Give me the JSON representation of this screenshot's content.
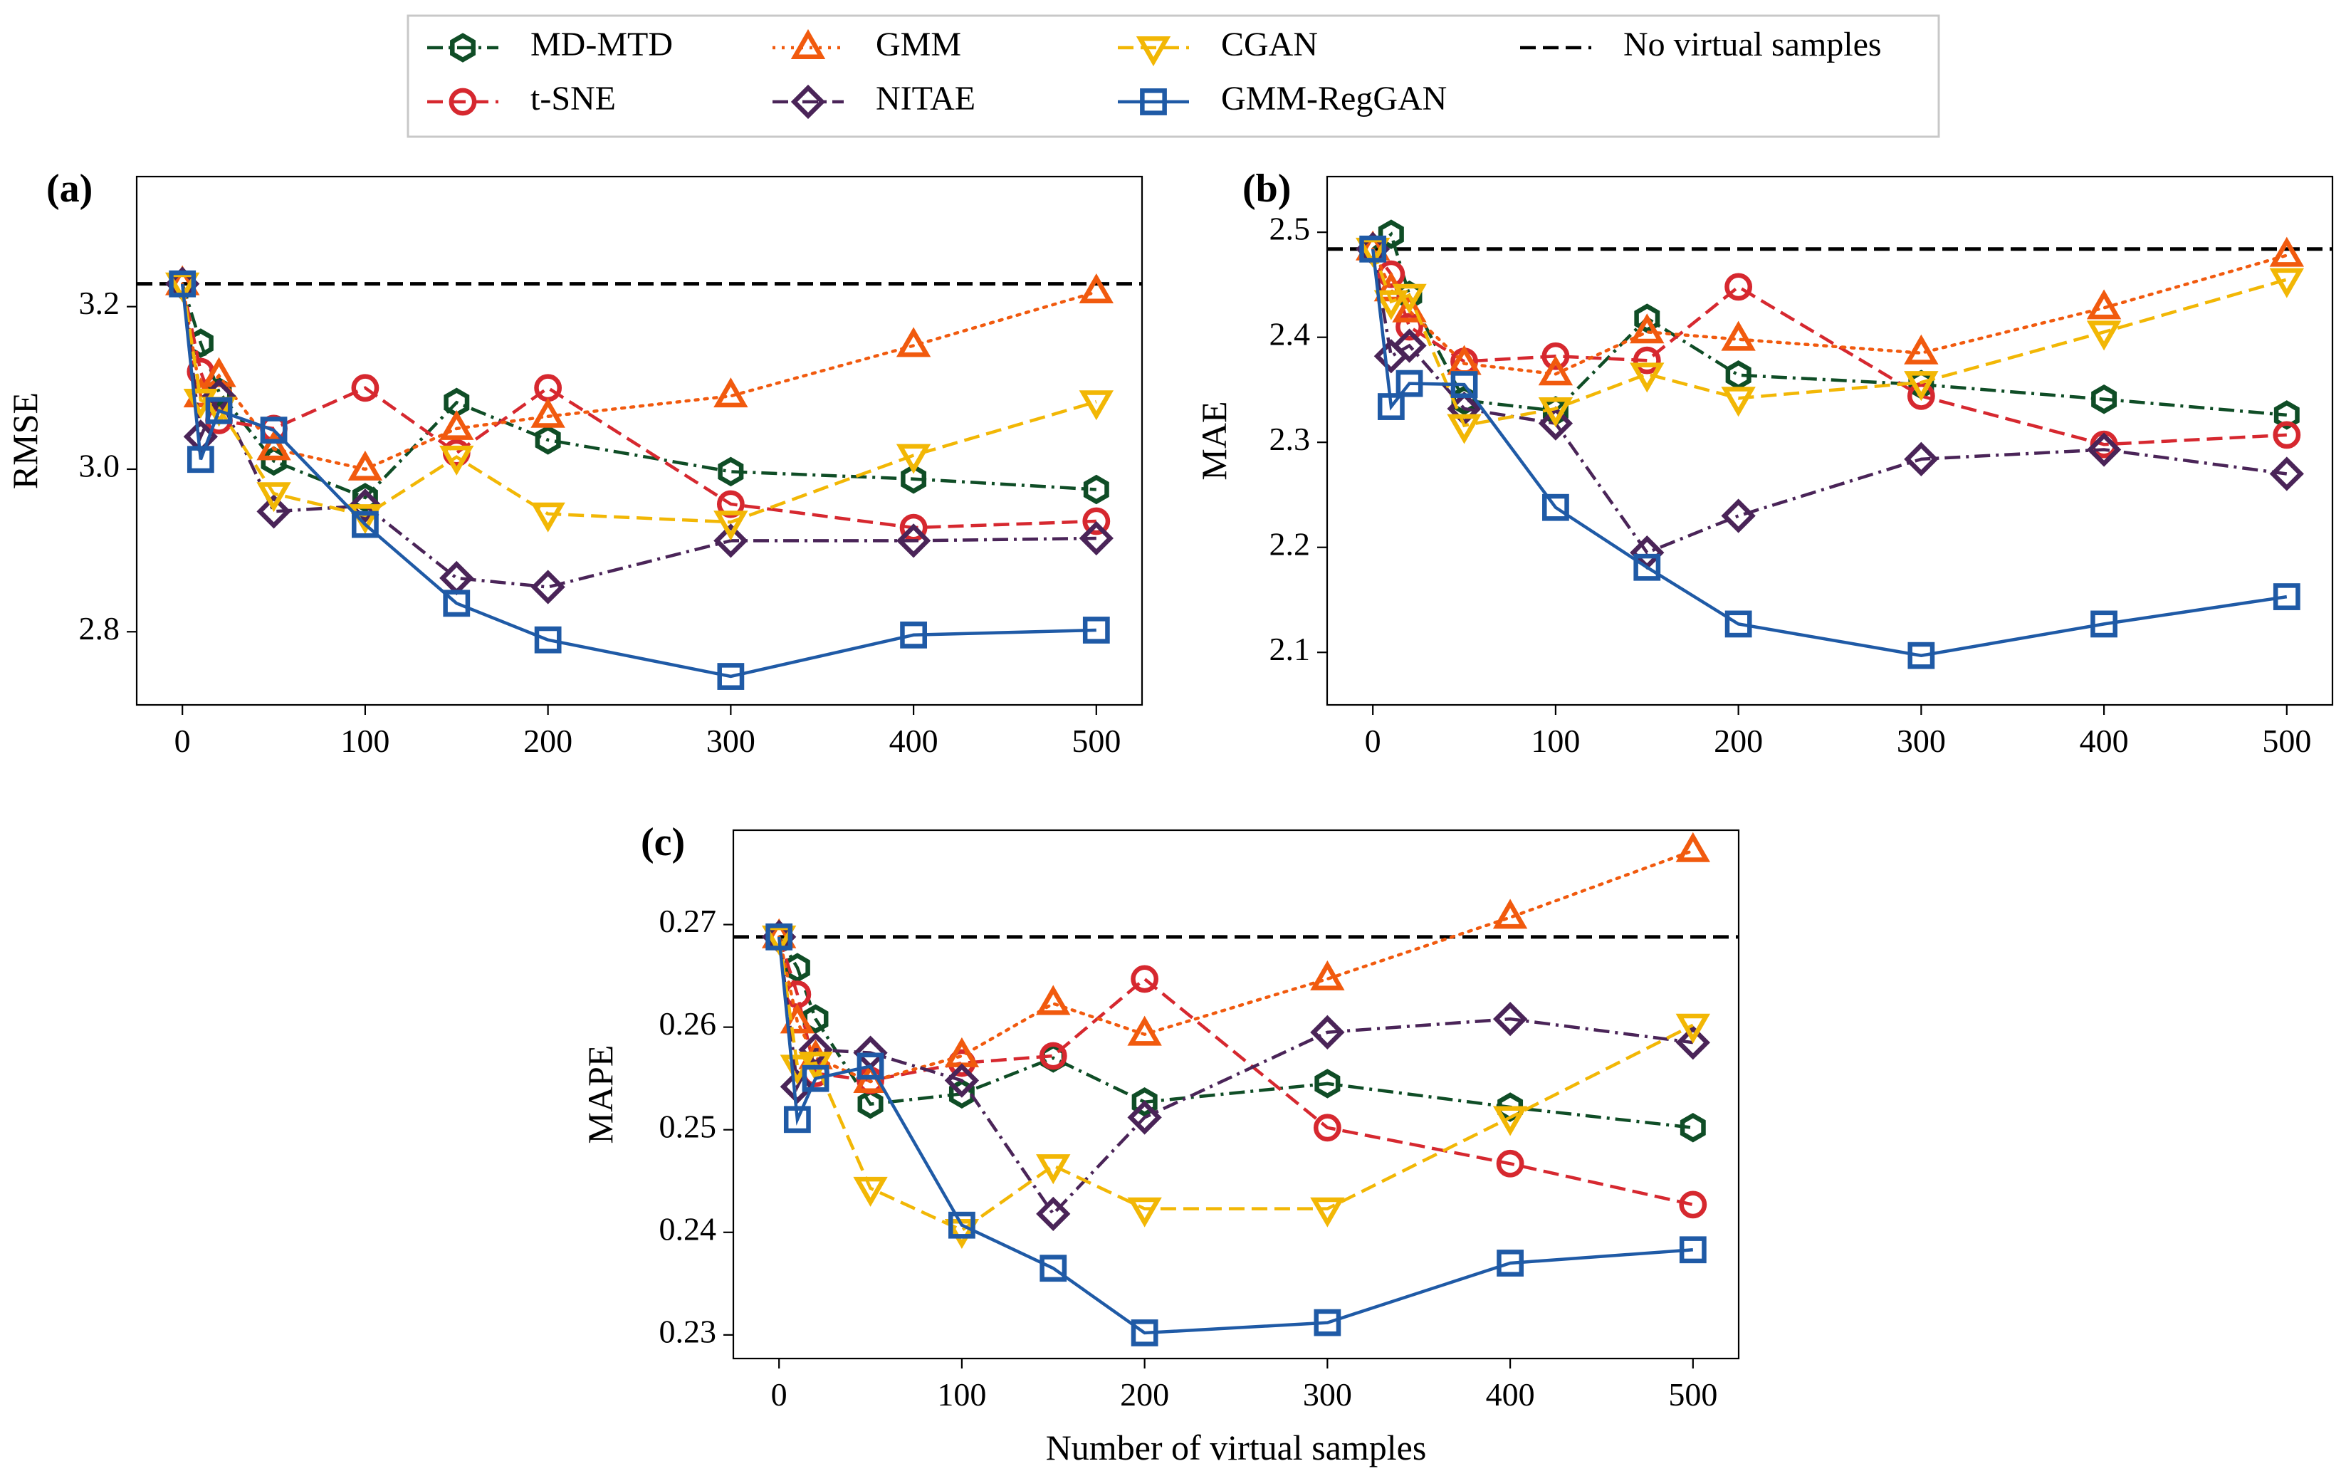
{
  "legend": {
    "entries": [
      {
        "name": "MD-MTD",
        "color": "#0f4d26",
        "dash": "dashdot",
        "marker": "hexagon"
      },
      {
        "name": "t-SNE",
        "color": "#d6282f",
        "dash": "dashed",
        "marker": "circle"
      },
      {
        "name": "GMM",
        "color": "#f15a0e",
        "dash": "dotted",
        "marker": "triangle-up"
      },
      {
        "name": "NITAE",
        "color": "#4a2458",
        "dash": "dashdot",
        "marker": "diamond"
      },
      {
        "name": "CGAN",
        "color": "#f2b705",
        "dash": "dashed",
        "marker": "triangle-down"
      },
      {
        "name": "GMM-RegGAN",
        "color": "#1f5aa6",
        "dash": "solid",
        "marker": "square"
      },
      {
        "name": "No virtual samples",
        "color": "#000000",
        "dash": "dashed",
        "marker": "none"
      }
    ]
  },
  "chart_data": [
    {
      "type": "line",
      "panel": "(a)",
      "xlabel": "",
      "ylabel": "RMSE",
      "x": [
        0,
        10,
        20,
        50,
        100,
        150,
        200,
        300,
        400,
        500
      ],
      "xlim": [
        -25,
        525
      ],
      "ylim": [
        2.71,
        3.36
      ],
      "xticks": [
        0,
        100,
        200,
        300,
        400,
        500
      ],
      "yticks": [
        2.8,
        3.0,
        3.2
      ],
      "ytick_labels": [
        "2.8",
        "3.0",
        "3.2"
      ],
      "baseline": 3.228,
      "series": [
        {
          "name": "MD-MTD",
          "values": [
            3.228,
            3.155,
            3.095,
            3.01,
            2.965,
            3.082,
            3.036,
            2.997,
            2.988,
            2.975
          ]
        },
        {
          "name": "t-SNE",
          "values": [
            3.228,
            3.12,
            3.06,
            3.05,
            3.1,
            3.02,
            3.1,
            2.957,
            2.928,
            2.936
          ]
        },
        {
          "name": "GMM",
          "values": [
            3.228,
            3.09,
            3.115,
            3.025,
            3.0,
            3.05,
            3.065,
            3.09,
            3.152,
            3.218
          ]
        },
        {
          "name": "NITAE",
          "values": [
            3.228,
            3.04,
            3.09,
            2.948,
            2.955,
            2.866,
            2.855,
            2.912,
            2.912,
            2.915
          ]
        },
        {
          "name": "CGAN",
          "values": [
            3.228,
            3.085,
            3.075,
            2.97,
            2.943,
            3.015,
            2.945,
            2.935,
            3.017,
            3.083
          ]
        },
        {
          "name": "GMM-RegGAN",
          "values": [
            3.228,
            3.012,
            3.072,
            3.048,
            2.932,
            2.835,
            2.79,
            2.745,
            2.796,
            2.802
          ]
        }
      ]
    },
    {
      "type": "line",
      "panel": "(b)",
      "xlabel": "",
      "ylabel": "MAE",
      "x": [
        0,
        10,
        20,
        50,
        100,
        150,
        200,
        300,
        400,
        500
      ],
      "xlim": [
        -25,
        525
      ],
      "ylim": [
        2.05,
        2.553
      ],
      "xticks": [
        0,
        100,
        200,
        300,
        400,
        500
      ],
      "yticks": [
        2.1,
        2.2,
        2.3,
        2.4,
        2.5
      ],
      "ytick_labels": [
        "2.1",
        "2.2",
        "2.3",
        "2.4",
        "2.5"
      ],
      "baseline": 2.484,
      "series": [
        {
          "name": "MD-MTD",
          "values": [
            2.484,
            2.498,
            2.44,
            2.34,
            2.33,
            2.418,
            2.364,
            2.355,
            2.341,
            2.326
          ]
        },
        {
          "name": "t-SNE",
          "values": [
            2.484,
            2.46,
            2.41,
            2.377,
            2.382,
            2.378,
            2.448,
            2.344,
            2.298,
            2.307
          ]
        },
        {
          "name": "GMM",
          "values": [
            2.484,
            2.445,
            2.425,
            2.375,
            2.365,
            2.405,
            2.398,
            2.385,
            2.428,
            2.478
          ]
        },
        {
          "name": "NITAE",
          "values": [
            2.484,
            2.382,
            2.392,
            2.332,
            2.318,
            2.195,
            2.23,
            2.284,
            2.293,
            2.27
          ]
        },
        {
          "name": "CGAN",
          "values": [
            2.484,
            2.434,
            2.44,
            2.316,
            2.332,
            2.365,
            2.342,
            2.357,
            2.405,
            2.455
          ]
        },
        {
          "name": "GMM-RegGAN",
          "values": [
            2.484,
            2.334,
            2.356,
            2.355,
            2.238,
            2.181,
            2.127,
            2.097,
            2.127,
            2.153
          ]
        }
      ]
    },
    {
      "type": "line",
      "panel": "(c)",
      "xlabel": "Number of virtual samples",
      "ylabel": "MAPE",
      "x": [
        0,
        10,
        20,
        50,
        100,
        150,
        200,
        300,
        400,
        500
      ],
      "xlim": [
        -25,
        525
      ],
      "ylim": [
        0.2277,
        0.2792
      ],
      "xticks": [
        0,
        100,
        200,
        300,
        400,
        500
      ],
      "yticks": [
        0.23,
        0.24,
        0.25,
        0.26,
        0.27
      ],
      "ytick_labels": [
        "0.23",
        "0.24",
        "0.25",
        "0.26",
        "0.27"
      ],
      "baseline": 0.2688,
      "series": [
        {
          "name": "MD-MTD",
          "values": [
            0.2688,
            0.2658,
            0.2608,
            0.2525,
            0.2535,
            0.257,
            0.2527,
            0.2545,
            0.2522,
            0.2502
          ]
        },
        {
          "name": "t-SNE",
          "values": [
            0.2688,
            0.2632,
            0.2555,
            0.2548,
            0.2565,
            0.2572,
            0.2647,
            0.2502,
            0.2467,
            0.2427
          ]
        },
        {
          "name": "GMM",
          "values": [
            0.2688,
            0.2605,
            0.257,
            0.2547,
            0.2572,
            0.2623,
            0.2593,
            0.2647,
            0.2707,
            0.2772
          ]
        },
        {
          "name": "NITAE",
          "values": [
            0.2688,
            0.2542,
            0.2578,
            0.2575,
            0.2548,
            0.2418,
            0.2512,
            0.2595,
            0.2608,
            0.2585
          ]
        },
        {
          "name": "CGAN",
          "values": [
            0.2688,
            0.2562,
            0.2565,
            0.2443,
            0.2402,
            0.2465,
            0.2423,
            0.2423,
            0.2512,
            0.2602
          ]
        },
        {
          "name": "GMM-RegGAN",
          "values": [
            0.2688,
            0.251,
            0.255,
            0.2562,
            0.2407,
            0.2365,
            0.2302,
            0.2312,
            0.237,
            0.2383
          ]
        }
      ]
    }
  ]
}
